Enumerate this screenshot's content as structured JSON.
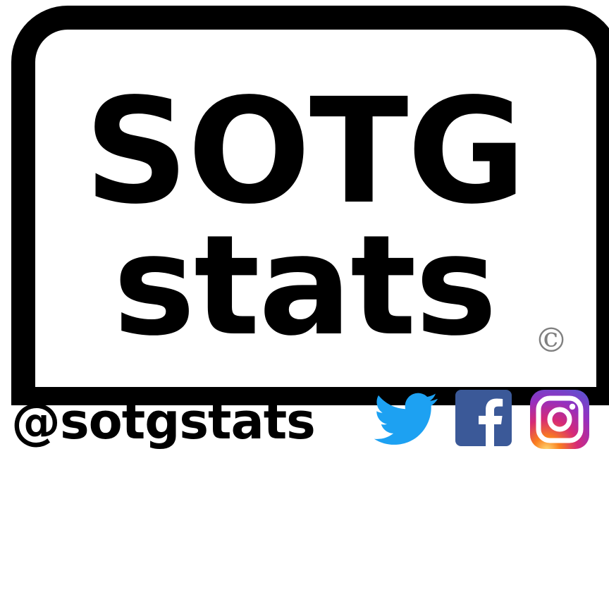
{
  "logo": {
    "title_top": "SOTG",
    "title_bottom": "stats",
    "copyright_symbol": "©"
  },
  "handle": "@sotgstats",
  "social": {
    "twitter": {
      "icon": "twitter-bird-icon",
      "color": "#1DA1F2"
    },
    "facebook": {
      "icon": "facebook-icon",
      "color": "#3B5998"
    },
    "instagram": {
      "icon": "instagram-icon",
      "colors": [
        "#FEDA75",
        "#FA7E1E",
        "#D62976",
        "#962FBF",
        "#4F5BD5"
      ]
    }
  },
  "colors": {
    "frame": "#000000",
    "text": "#000000",
    "background": "#FFFFFF"
  }
}
